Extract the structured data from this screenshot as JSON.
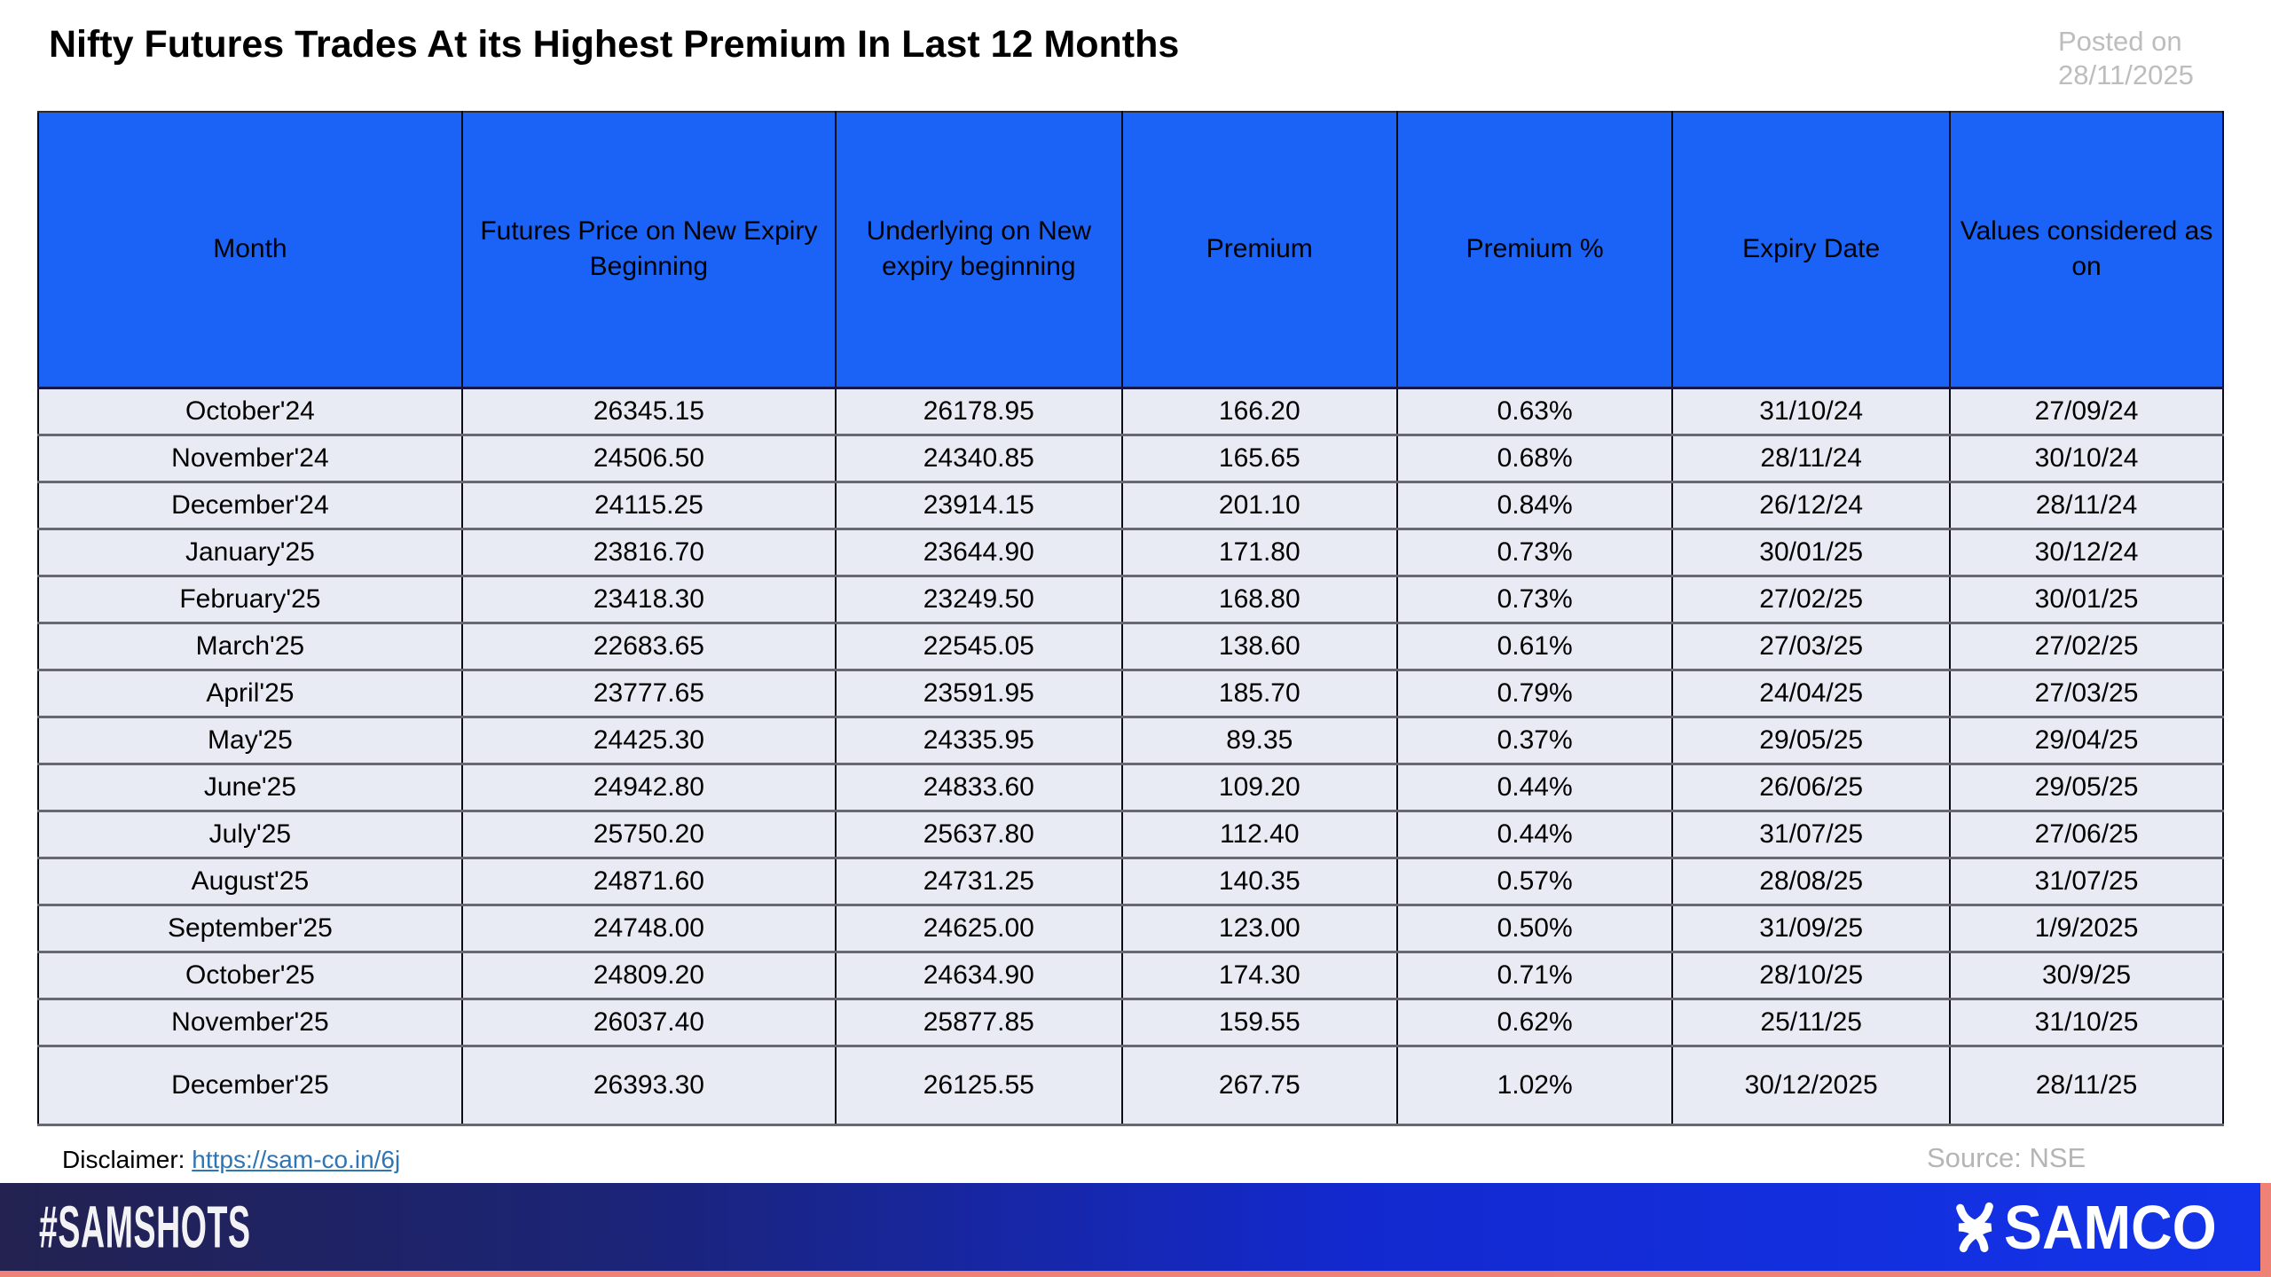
{
  "page": {
    "title": "Nifty Futures Trades At its Highest Premium In Last 12 Months",
    "posted_on_line1": "Posted on",
    "posted_on_line2": "28/11/2025"
  },
  "chart_data": {
    "type": "table",
    "title": "Nifty Futures Trades At its Highest Premium In Last 12 Months",
    "columns": [
      "Month",
      "Futures Price on New Expiry Beginning",
      "Underlying on New expiry beginning",
      "Premium",
      "Premium %",
      "Expiry Date",
      "Values considered as on"
    ],
    "rows": [
      [
        "October'24",
        "26345.15",
        "26178.95",
        "166.20",
        "0.63%",
        "31/10/24",
        "27/09/24"
      ],
      [
        "November'24",
        "24506.50",
        "24340.85",
        "165.65",
        "0.68%",
        "28/11/24",
        "30/10/24"
      ],
      [
        "December'24",
        "24115.25",
        "23914.15",
        "201.10",
        "0.84%",
        "26/12/24",
        "28/11/24"
      ],
      [
        "January'25",
        "23816.70",
        "23644.90",
        "171.80",
        "0.73%",
        "30/01/25",
        "30/12/24"
      ],
      [
        "February'25",
        "23418.30",
        "23249.50",
        "168.80",
        "0.73%",
        "27/02/25",
        "30/01/25"
      ],
      [
        "March'25",
        "22683.65",
        "22545.05",
        "138.60",
        "0.61%",
        "27/03/25",
        "27/02/25"
      ],
      [
        "April'25",
        "23777.65",
        "23591.95",
        "185.70",
        "0.79%",
        "24/04/25",
        "27/03/25"
      ],
      [
        "May'25",
        "24425.30",
        "24335.95",
        "89.35",
        "0.37%",
        "29/05/25",
        "29/04/25"
      ],
      [
        "June'25",
        "24942.80",
        "24833.60",
        "109.20",
        "0.44%",
        "26/06/25",
        "29/05/25"
      ],
      [
        "July'25",
        "25750.20",
        "25637.80",
        "112.40",
        "0.44%",
        "31/07/25",
        "27/06/25"
      ],
      [
        "August'25",
        "24871.60",
        "24731.25",
        "140.35",
        "0.57%",
        "28/08/25",
        "31/07/25"
      ],
      [
        "September'25",
        "24748.00",
        "24625.00",
        "123.00",
        "0.50%",
        "31/09/25",
        "1/9/2025"
      ],
      [
        "October'25",
        "24809.20",
        "24634.90",
        "174.30",
        "0.71%",
        "28/10/25",
        "30/9/25"
      ],
      [
        "November'25",
        "26037.40",
        "25877.85",
        "159.55",
        "0.62%",
        "25/11/25",
        "31/10/25"
      ],
      [
        "December'25",
        "26393.30",
        "26125.55",
        "267.75",
        "1.02%",
        "30/12/2025",
        "28/11/25"
      ]
    ]
  },
  "footer": {
    "disclaimer_label": "Disclaimer:",
    "disclaimer_link": "https://sam-co.in/6j",
    "source": "Source: NSE",
    "hashtag": "#SAMSHOTS",
    "brand": "SAMCO"
  },
  "colors": {
    "header_blue": "#1b63f7",
    "row_background": "#e9ebf4",
    "footer_navy": "#232250",
    "footer_blue": "#1334ea",
    "accent_salmon": "#ee8276",
    "link_blue": "#2e75b6",
    "muted_gray": "#bdbdbd"
  }
}
